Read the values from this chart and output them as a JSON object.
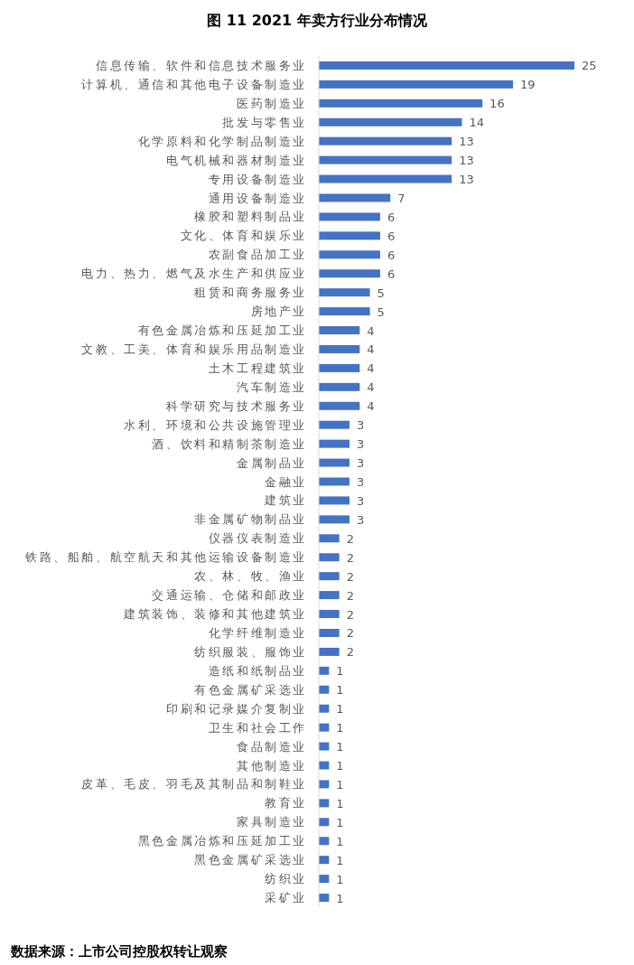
{
  "chart_data": {
    "type": "bar",
    "orientation": "horizontal",
    "title": "图 11 2021 年卖方行业分布情况",
    "categories": [
      "信息传输、软件和信息技术服务业",
      "计算机、通信和其他电子设备制造业",
      "医药制造业",
      "批发与零售业",
      "化学原料和化学制品制造业",
      "电气机械和器材制造业",
      "专用设备制造业",
      "通用设备制造业",
      "橡胶和塑料制品业",
      "文化、体育和娱乐业",
      "农副食品加工业",
      "电力、热力、燃气及水生产和供应业",
      "租赁和商务服务业",
      "房地产业",
      "有色金属冶炼和压延加工业",
      "文教、工美、体育和娱乐用品制造业",
      "土木工程建筑业",
      "汽车制造业",
      "科学研究与技术服务业",
      "水利、环境和公共设施管理业",
      "酒、饮料和精制茶制造业",
      "金属制品业",
      "金融业",
      "建筑业",
      "非金属矿物制品业",
      "仪器仪表制造业",
      "铁路、船舶、航空航天和其他运输设备制造业",
      "农、林、牧、渔业",
      "交通运输、仓储和邮政业",
      "建筑装饰、装修和其他建筑业",
      "化学纤维制造业",
      "纺织服装、服饰业",
      "造纸和纸制品业",
      "有色金属矿采选业",
      "印刷和记录媒介复制业",
      "卫生和社会工作",
      "食品制造业",
      "其他制造业",
      "皮革、毛皮、羽毛及其制品和制鞋业",
      "教育业",
      "家具制造业",
      "黑色金属冶炼和压延加工业",
      "黑色金属矿采选业",
      "纺织业",
      "采矿业"
    ],
    "values": [
      25,
      19,
      16,
      14,
      13,
      13,
      13,
      7,
      6,
      6,
      6,
      6,
      5,
      5,
      4,
      4,
      4,
      4,
      4,
      3,
      3,
      3,
      3,
      3,
      3,
      2,
      2,
      2,
      2,
      2,
      2,
      2,
      1,
      1,
      1,
      1,
      1,
      1,
      1,
      1,
      1,
      1,
      1,
      1,
      1
    ],
    "color": "#4472c4",
    "data_labels": true,
    "annotations": [
      "数据来源：上市公司控股权转让观察"
    ]
  }
}
